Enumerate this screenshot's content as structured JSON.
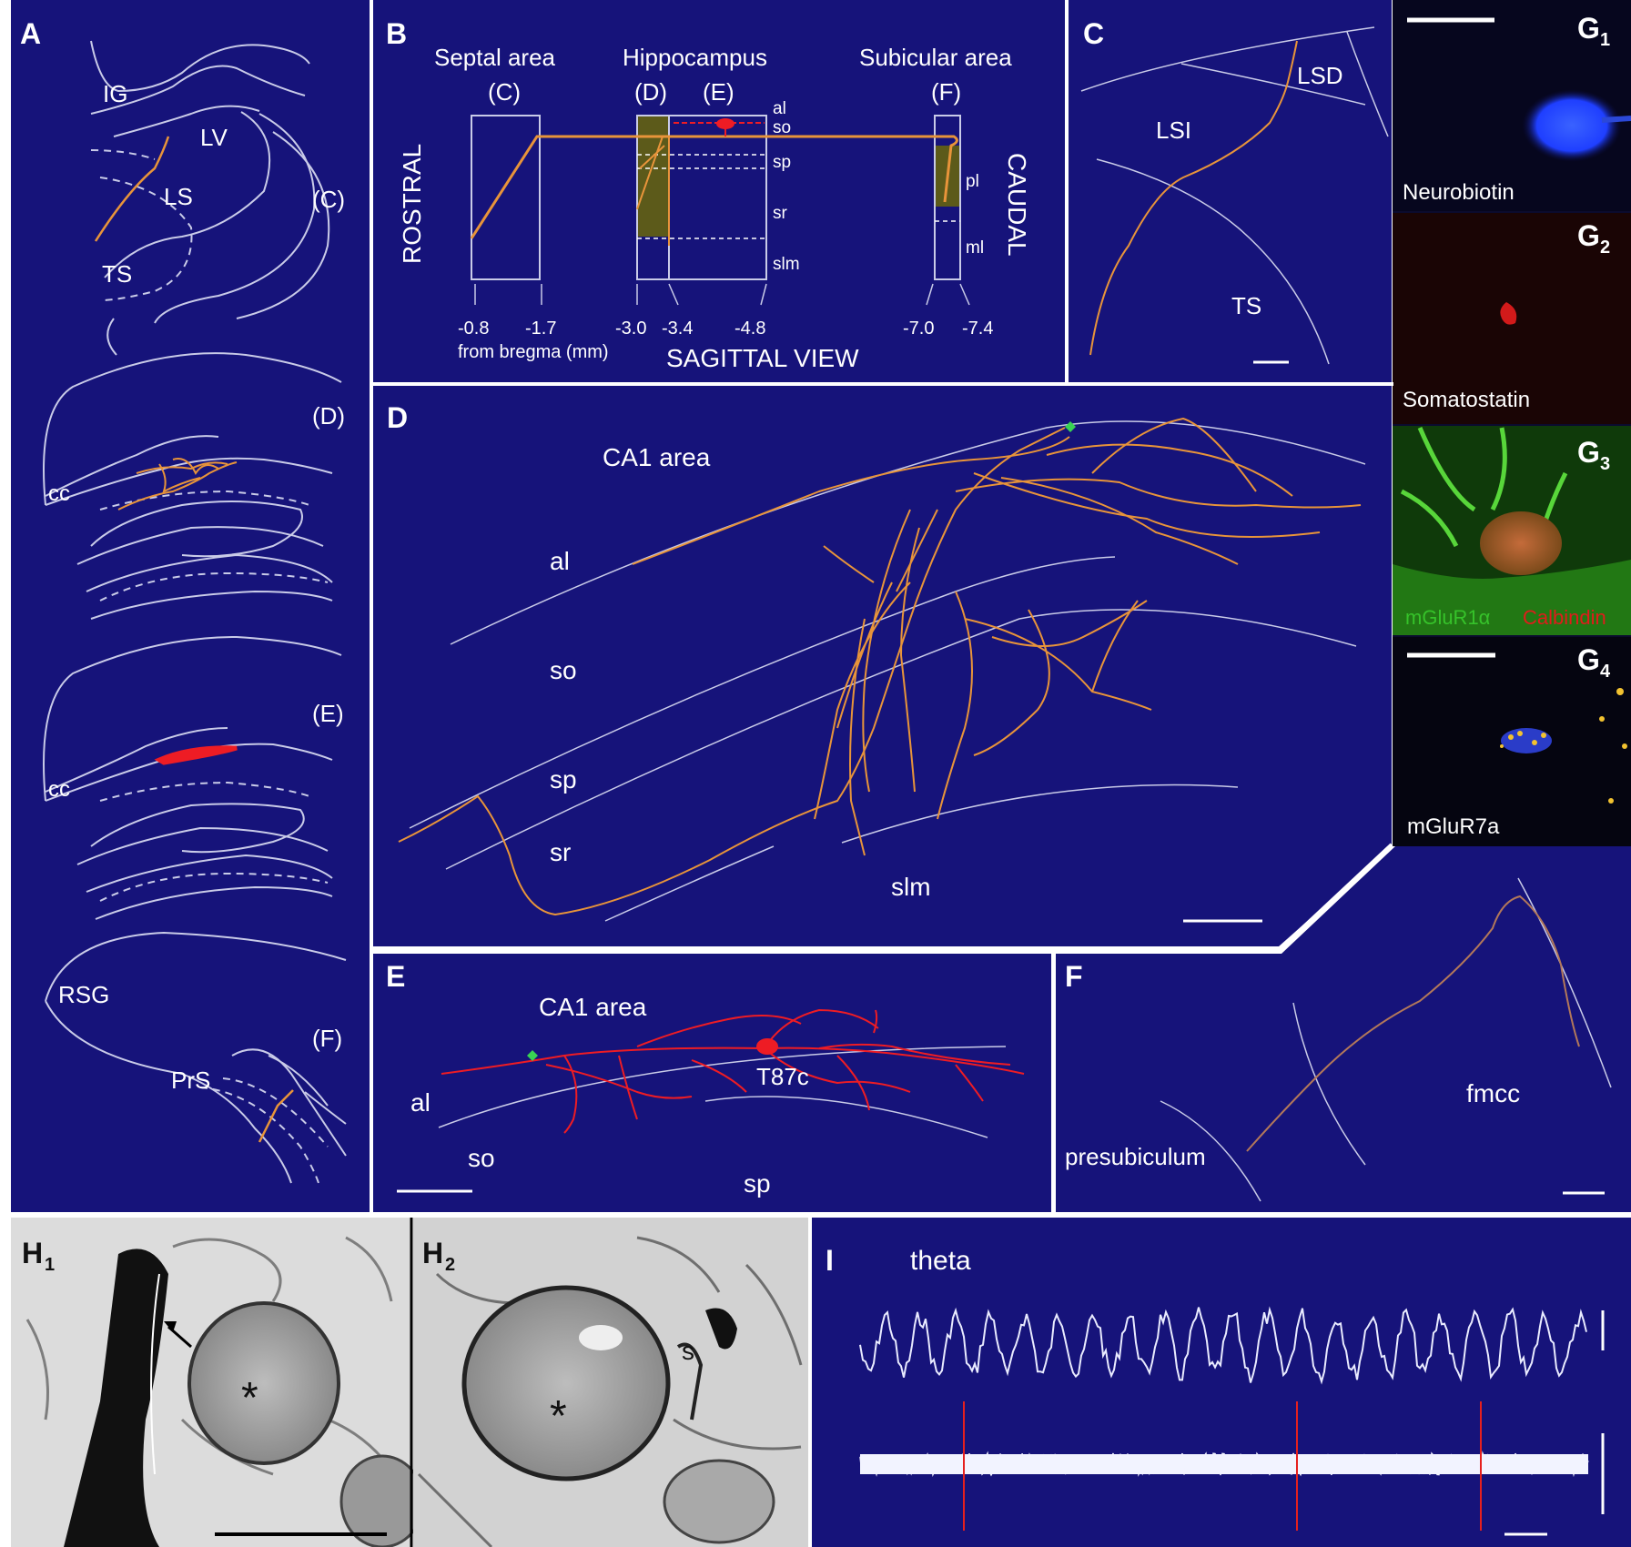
{
  "colors": {
    "background": "#16137a",
    "line": "#c9cbe8",
    "axon_orange": "#e8943a",
    "cell_red": "#ee1c24",
    "marker_green": "#39d353",
    "olive_fill": "#5c5a1a"
  },
  "panel_a": {
    "label": "A",
    "ig": "IG",
    "lv": "LV",
    "ls": "LS",
    "ts": "TS",
    "sec_c": "(C)",
    "cc_d": "cc",
    "sec_d": "(D)",
    "cc_e": "cc",
    "sec_e": "(E)",
    "rsg": "RSG",
    "prs": "PrS",
    "sec_f": "(F)"
  },
  "panel_b": {
    "label": "B",
    "septal": "Septal area",
    "hippocampus": "Hippocampus",
    "subicular": "Subicular area",
    "sec_c": "(C)",
    "sec_d": "(D)",
    "sec_e": "(E)",
    "sec_f": "(F)",
    "rostral": "ROSTRAL",
    "caudal": "CAUDAL",
    "layers": [
      "al",
      "so",
      "sp",
      "sr",
      "slm"
    ],
    "sub_layers": [
      "pl",
      "ml"
    ],
    "ticks": [
      "-0.8",
      "-1.7",
      "-3.0",
      "-3.4",
      "-4.8",
      "-7.0",
      "-7.4"
    ],
    "from_bregma": "from bregma (mm)",
    "view": "SAGITTAL VIEW"
  },
  "panel_c": {
    "label": "C",
    "lsd": "LSD",
    "lsi": "LSI",
    "ts": "TS"
  },
  "panel_d": {
    "label": "D",
    "title": "CA1 area",
    "layers": [
      "al",
      "so",
      "sp",
      "sr",
      "slm"
    ]
  },
  "panel_e": {
    "label": "E",
    "title": "CA1 area",
    "cell": "T87c",
    "al": "al",
    "so": "so",
    "sp": "sp"
  },
  "panel_f": {
    "label": "F",
    "presubiculum": "presubiculum",
    "fmcc": "fmcc"
  },
  "panel_g": {
    "g1_letter": "G",
    "g1_sub": "1",
    "g1_caption": "Neurobiotin",
    "g2_letter": "G",
    "g2_sub": "2",
    "g2_caption": "Somatostatin",
    "g3_letter": "G",
    "g3_sub": "3",
    "g3_caption_green": "mGluR1α",
    "g3_caption_red": "Calbindin",
    "g4_letter": "G",
    "g4_sub": "4",
    "g4_caption": "mGluR7a"
  },
  "panel_h": {
    "h1_letter": "H",
    "h1_sub": "1",
    "h2_letter": "H",
    "h2_sub": "2",
    "asterisk": "*",
    "s": "s"
  },
  "panel_i": {
    "label": "I",
    "theta": "theta"
  }
}
